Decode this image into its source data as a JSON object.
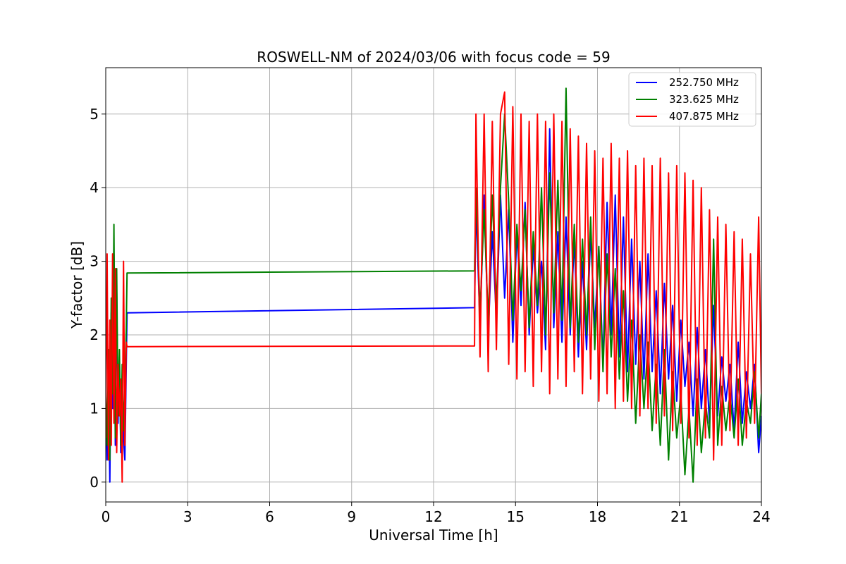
{
  "chart_data": {
    "type": "line",
    "title": "ROSWELL-NM of 2024/03/06 with focus code = 59",
    "xlabel": "Universal Time [h]",
    "ylabel": "Y-factor [dB]",
    "xlim": [
      0,
      24
    ],
    "ylim": [
      -0.27,
      5.63
    ],
    "xticks": [
      0,
      3,
      6,
      9,
      12,
      15,
      18,
      21,
      24
    ],
    "yticks": [
      0,
      1,
      2,
      3,
      4,
      5
    ],
    "grid": true,
    "legend_position": "upper right",
    "series": [
      {
        "name": "252.750 MHz",
        "color": "#0000ff",
        "x": [
          0.0,
          0.05,
          0.1,
          0.15,
          0.2,
          0.25,
          0.3,
          0.35,
          0.4,
          0.45,
          0.5,
          0.55,
          0.6,
          0.65,
          0.7,
          0.75,
          0.78,
          13.5,
          13.55,
          13.7,
          13.85,
          14.0,
          14.15,
          14.3,
          14.45,
          14.6,
          14.75,
          14.9,
          15.05,
          15.2,
          15.35,
          15.5,
          15.65,
          15.8,
          15.95,
          16.1,
          16.25,
          16.4,
          16.55,
          16.7,
          16.85,
          17.0,
          17.15,
          17.3,
          17.45,
          17.6,
          17.75,
          17.9,
          18.05,
          18.2,
          18.35,
          18.5,
          18.65,
          18.8,
          18.95,
          19.1,
          19.25,
          19.4,
          19.55,
          19.7,
          19.85,
          20.0,
          20.15,
          20.3,
          20.45,
          20.6,
          20.75,
          20.9,
          21.05,
          21.2,
          21.35,
          21.5,
          21.65,
          21.8,
          21.95,
          22.1,
          22.25,
          22.4,
          22.55,
          22.7,
          22.85,
          23.0,
          23.15,
          23.3,
          23.45,
          23.6,
          23.75,
          23.9,
          24.0
        ],
        "y": [
          1.2,
          0.3,
          1.5,
          0.0,
          2.3,
          1.0,
          3.1,
          0.5,
          2.6,
          0.8,
          1.7,
          0.4,
          1.4,
          0.6,
          0.3,
          1.6,
          2.3,
          2.37,
          3.8,
          2.1,
          3.9,
          2.0,
          3.4,
          2.2,
          3.9,
          2.5,
          3.7,
          1.9,
          3.4,
          2.4,
          3.8,
          2.0,
          3.2,
          2.3,
          3.0,
          1.8,
          4.8,
          2.1,
          3.4,
          1.9,
          3.6,
          2.0,
          3.3,
          1.7,
          3.0,
          1.8,
          3.4,
          2.1,
          3.2,
          1.6,
          3.8,
          2.0,
          3.9,
          1.7,
          3.6,
          1.5,
          3.3,
          1.6,
          3.0,
          1.4,
          3.1,
          1.5,
          2.6,
          1.2,
          2.7,
          1.4,
          2.4,
          1.1,
          2.2,
          1.3,
          1.9,
          0.9,
          2.1,
          1.0,
          1.8,
          0.8,
          2.4,
          0.9,
          1.7,
          1.1,
          1.6,
          0.7,
          1.9,
          0.8,
          1.5,
          1.0,
          1.6,
          0.4,
          0.9
        ]
      },
      {
        "name": "323.625 MHz",
        "color": "#008000",
        "x": [
          0.0,
          0.05,
          0.1,
          0.15,
          0.2,
          0.25,
          0.3,
          0.35,
          0.4,
          0.45,
          0.5,
          0.55,
          0.6,
          0.65,
          0.7,
          0.75,
          0.78,
          13.5,
          13.55,
          13.7,
          13.85,
          14.0,
          14.15,
          14.3,
          14.45,
          14.6,
          14.75,
          14.9,
          15.05,
          15.2,
          15.35,
          15.5,
          15.65,
          15.8,
          15.95,
          16.1,
          16.25,
          16.4,
          16.55,
          16.7,
          16.85,
          17.0,
          17.15,
          17.3,
          17.45,
          17.6,
          17.75,
          17.9,
          18.05,
          18.2,
          18.35,
          18.5,
          18.65,
          18.8,
          18.95,
          19.1,
          19.25,
          19.4,
          19.55,
          19.7,
          19.85,
          20.0,
          20.15,
          20.3,
          20.45,
          20.6,
          20.75,
          20.9,
          21.05,
          21.2,
          21.35,
          21.5,
          21.65,
          21.8,
          21.95,
          22.1,
          22.25,
          22.4,
          22.55,
          22.7,
          22.85,
          23.0,
          23.15,
          23.3,
          23.45,
          23.6,
          23.75,
          23.9,
          24.0
        ],
        "y": [
          1.4,
          0.5,
          1.8,
          0.3,
          2.5,
          1.2,
          3.5,
          0.6,
          2.9,
          0.9,
          1.8,
          0.5,
          1.6,
          0.7,
          1.3,
          2.1,
          2.84,
          2.87,
          4.0,
          2.3,
          3.7,
          2.2,
          3.9,
          2.4,
          4.0,
          5.0,
          3.8,
          2.2,
          3.5,
          2.6,
          3.7,
          2.1,
          3.4,
          2.4,
          4.0,
          2.0,
          4.2,
          2.3,
          4.1,
          2.2,
          5.35,
          2.1,
          3.5,
          1.9,
          3.3,
          2.0,
          3.6,
          1.8,
          3.2,
          1.5,
          3.1,
          1.7,
          2.9,
          1.4,
          2.6,
          1.1,
          2.2,
          0.8,
          2.0,
          1.0,
          1.9,
          0.7,
          1.6,
          0.5,
          1.8,
          0.3,
          1.5,
          0.6,
          1.2,
          0.1,
          1.0,
          0.0,
          1.4,
          0.4,
          1.1,
          0.6,
          3.3,
          0.5,
          1.3,
          0.7,
          1.2,
          0.6,
          1.4,
          0.5,
          1.1,
          0.8,
          1.5,
          0.6,
          1.2
        ]
      },
      {
        "name": "407.875 MHz",
        "color": "#ff0000",
        "x": [
          0.0,
          0.05,
          0.1,
          0.15,
          0.2,
          0.25,
          0.3,
          0.35,
          0.4,
          0.45,
          0.5,
          0.55,
          0.6,
          0.65,
          0.7,
          0.75,
          0.78,
          13.5,
          13.55,
          13.7,
          13.85,
          14.0,
          14.15,
          14.3,
          14.45,
          14.6,
          14.75,
          14.9,
          15.05,
          15.2,
          15.35,
          15.5,
          15.65,
          15.8,
          15.95,
          16.1,
          16.25,
          16.4,
          16.55,
          16.7,
          16.85,
          17.0,
          17.15,
          17.3,
          17.45,
          17.6,
          17.75,
          17.9,
          18.05,
          18.2,
          18.35,
          18.5,
          18.65,
          18.8,
          18.95,
          19.1,
          19.25,
          19.4,
          19.55,
          19.7,
          19.85,
          20.0,
          20.15,
          20.3,
          20.45,
          20.6,
          20.75,
          20.9,
          21.05,
          21.2,
          21.35,
          21.5,
          21.65,
          21.8,
          21.95,
          22.1,
          22.25,
          22.4,
          22.55,
          22.7,
          22.85,
          23.0,
          23.15,
          23.3,
          23.45,
          23.6,
          23.75,
          23.9,
          24.0
        ],
        "y": [
          0.6,
          3.1,
          0.3,
          2.2,
          0.5,
          3.1,
          0.8,
          2.9,
          0.4,
          1.6,
          0.9,
          1.4,
          0.0,
          3.0,
          0.5,
          1.9,
          1.84,
          1.85,
          5.0,
          1.7,
          5.0,
          1.5,
          4.9,
          1.8,
          5.0,
          5.3,
          1.6,
          5.1,
          1.4,
          5.0,
          1.5,
          4.9,
          1.3,
          5.0,
          1.5,
          4.9,
          1.2,
          5.0,
          1.4,
          4.9,
          1.3,
          4.8,
          1.5,
          4.7,
          1.2,
          4.6,
          1.4,
          4.5,
          1.1,
          4.4,
          1.2,
          4.6,
          1.0,
          4.4,
          1.1,
          4.5,
          1.0,
          4.3,
          0.9,
          4.4,
          1.0,
          4.3,
          0.8,
          4.4,
          0.9,
          4.2,
          0.7,
          4.3,
          0.8,
          4.2,
          0.6,
          4.1,
          0.5,
          4.0,
          0.6,
          3.7,
          0.3,
          3.6,
          0.5,
          3.5,
          0.7,
          3.4,
          0.5,
          3.3,
          0.6,
          3.1,
          0.8,
          3.6,
          1.2
        ]
      }
    ]
  }
}
